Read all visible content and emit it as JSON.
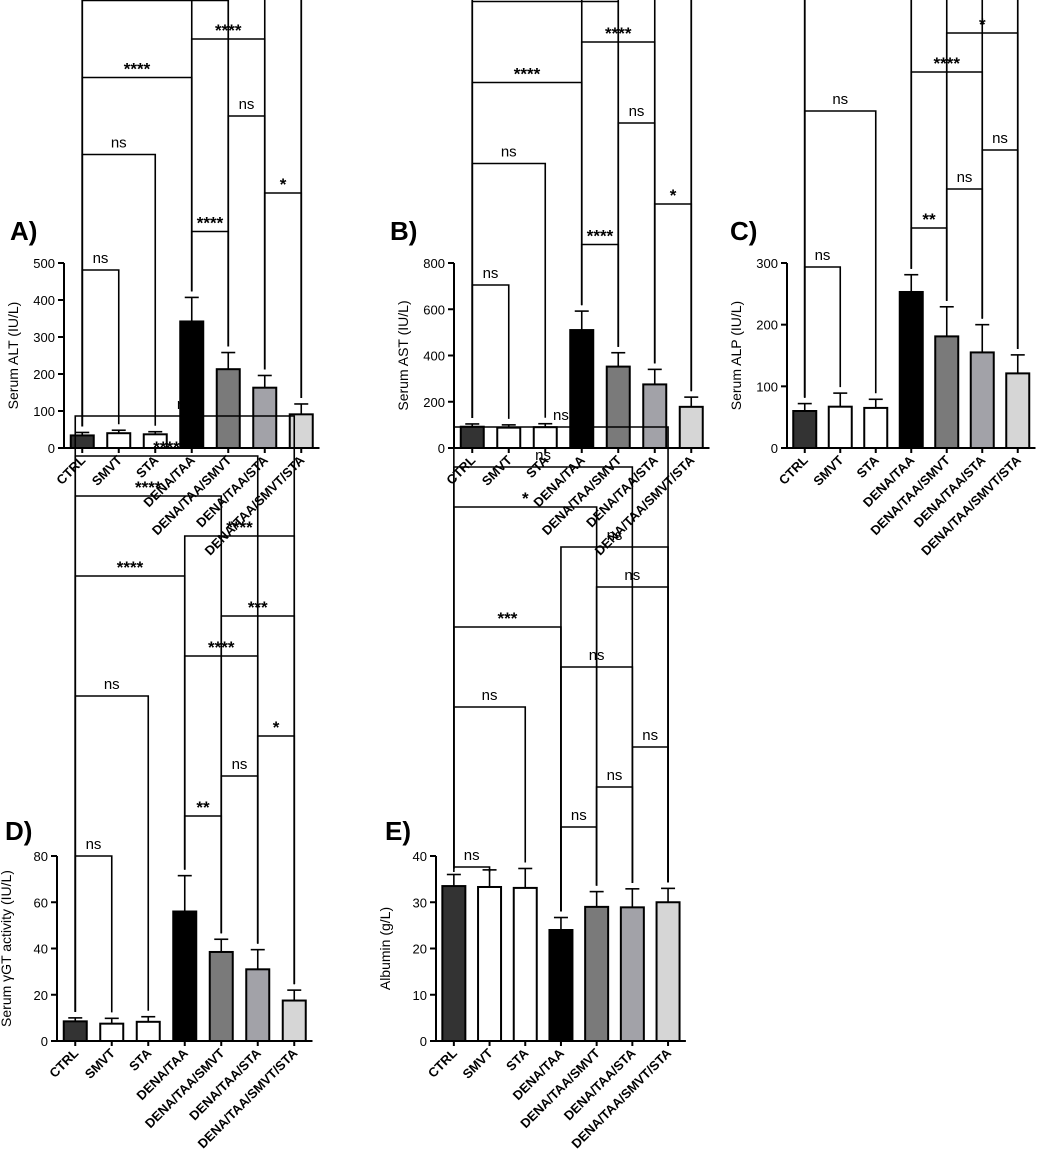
{
  "colors": {
    "CTRL": "#333333",
    "SMVT": "#ffffff",
    "STA": "#ffffff",
    "DENA/TAA": "#000000",
    "DENA/TAA/SMVT": "#7a7a7a",
    "DENA/TAA/STA": "#a2a2a8",
    "DENA/TAA/SMVT/STA": "#d6d6d6"
  },
  "chart_data": [
    {
      "panel": "A)",
      "type": "bar",
      "ylabel": "Serum ALT (IU/L)",
      "ylim": [
        0,
        500
      ],
      "yticks": [
        0,
        100,
        200,
        300,
        400,
        500
      ],
      "categories": [
        "CTRL",
        "SMVT",
        "STA",
        "DENA/TAA",
        "DENA/TAA/SMVT",
        "DENA/TAA/STA",
        "DENA/TAA/SMVT/STA"
      ],
      "values": [
        34,
        40,
        37,
        342,
        213,
        163,
        91
      ],
      "errors": [
        8,
        8,
        7,
        65,
        45,
        33,
        28
      ],
      "comparisons": [
        {
          "a": 0,
          "b": 1,
          "label": "ns"
        },
        {
          "a": 3,
          "b": 4,
          "label": "****"
        },
        {
          "a": 5,
          "b": 6,
          "label": "*"
        },
        {
          "a": 0,
          "b": 2,
          "label": "ns"
        },
        {
          "a": 4,
          "b": 5,
          "label": "ns"
        },
        {
          "a": 0,
          "b": 3,
          "label": "****"
        },
        {
          "a": 3,
          "b": 5,
          "label": "****"
        },
        {
          "a": 0,
          "b": 4,
          "label": "****"
        },
        {
          "a": 4,
          "b": 6,
          "label": "****"
        },
        {
          "a": 3,
          "b": 6,
          "label": "****"
        },
        {
          "a": 0,
          "b": 5,
          "label": "****"
        },
        {
          "a": 0,
          "b": 6,
          "label": "ns"
        }
      ]
    },
    {
      "panel": "B)",
      "type": "bar",
      "ylabel": "Serum AST (IU/L)",
      "ylim": [
        0,
        800
      ],
      "yticks": [
        0,
        200,
        400,
        600,
        800
      ],
      "categories": [
        "CTRL",
        "SMVT",
        "STA",
        "DENA/TAA",
        "DENA/TAA/SMVT",
        "DENA/TAA/STA",
        "DENA/TAA/SMVT/STA"
      ],
      "values": [
        92,
        88,
        90,
        510,
        352,
        275,
        178
      ],
      "errors": [
        12,
        12,
        15,
        82,
        60,
        65,
        42
      ],
      "comparisons": [
        {
          "a": 0,
          "b": 1,
          "label": "ns"
        },
        {
          "a": 3,
          "b": 4,
          "label": "****"
        },
        {
          "a": 5,
          "b": 6,
          "label": "*"
        },
        {
          "a": 0,
          "b": 2,
          "label": "ns"
        },
        {
          "a": 4,
          "b": 5,
          "label": "ns"
        },
        {
          "a": 0,
          "b": 3,
          "label": "****"
        },
        {
          "a": 3,
          "b": 5,
          "label": "****"
        },
        {
          "a": 0,
          "b": 4,
          "label": "****"
        },
        {
          "a": 4,
          "b": 6,
          "label": "****"
        },
        {
          "a": 3,
          "b": 6,
          "label": "****"
        },
        {
          "a": 0,
          "b": 5,
          "label": "****"
        },
        {
          "a": 0,
          "b": 6,
          "label": "ns"
        }
      ]
    },
    {
      "panel": "C)",
      "type": "bar",
      "ylabel": "Serum ALP (IU/L)",
      "ylim": [
        0,
        300
      ],
      "yticks": [
        0,
        100,
        200,
        300
      ],
      "categories": [
        "CTRL",
        "SMVT",
        "STA",
        "DENA/TAA",
        "DENA/TAA/SMVT",
        "DENA/TAA/STA",
        "DENA/TAA/SMVT/STA"
      ],
      "values": [
        60,
        67,
        65,
        253,
        181,
        155,
        121
      ],
      "errors": [
        12,
        22,
        14,
        28,
        48,
        45,
        30
      ],
      "comparisons": [
        {
          "a": 0,
          "b": 1,
          "label": "ns"
        },
        {
          "a": 3,
          "b": 4,
          "label": "**"
        },
        {
          "a": 4,
          "b": 5,
          "label": "ns"
        },
        {
          "a": 5,
          "b": 6,
          "label": "ns"
        },
        {
          "a": 0,
          "b": 2,
          "label": "ns"
        },
        {
          "a": 3,
          "b": 5,
          "label": "****"
        },
        {
          "a": 4,
          "b": 6,
          "label": "*"
        },
        {
          "a": 0,
          "b": 3,
          "label": "****"
        },
        {
          "a": 3,
          "b": 6,
          "label": "****"
        },
        {
          "a": 0,
          "b": 4,
          "label": "****"
        },
        {
          "a": 0,
          "b": 5,
          "label": "***"
        },
        {
          "a": 0,
          "b": 6,
          "label": "*"
        }
      ]
    },
    {
      "panel": "D)",
      "type": "bar",
      "ylabel": "Serum γGT activity (IU/L)",
      "ylim": [
        0,
        80
      ],
      "yticks": [
        0,
        20,
        40,
        60,
        80
      ],
      "categories": [
        "CTRL",
        "SMVT",
        "STA",
        "DENA/TAA",
        "DENA/TAA/SMVT",
        "DENA/TAA/STA",
        "DENA/TAA/SMVT/STA"
      ],
      "values": [
        8.5,
        7.5,
        8.3,
        56,
        38.5,
        31,
        17.5
      ],
      "errors": [
        1.5,
        2.3,
        2.2,
        15.5,
        5.5,
        8.5,
        4.5
      ],
      "comparisons": [
        {
          "a": 0,
          "b": 1,
          "label": "ns"
        },
        {
          "a": 3,
          "b": 4,
          "label": "**"
        },
        {
          "a": 4,
          "b": 5,
          "label": "ns"
        },
        {
          "a": 5,
          "b": 6,
          "label": "*"
        },
        {
          "a": 0,
          "b": 2,
          "label": "ns"
        },
        {
          "a": 3,
          "b": 5,
          "label": "****"
        },
        {
          "a": 4,
          "b": 6,
          "label": "***"
        },
        {
          "a": 0,
          "b": 3,
          "label": "****"
        },
        {
          "a": 3,
          "b": 6,
          "label": "****"
        },
        {
          "a": 0,
          "b": 4,
          "label": "****"
        },
        {
          "a": 0,
          "b": 5,
          "label": "****"
        },
        {
          "a": 0,
          "b": 6,
          "label": "ns"
        }
      ]
    },
    {
      "panel": "E)",
      "type": "bar",
      "ylabel": "Albumin (g/L)",
      "ylim": [
        0,
        40
      ],
      "yticks": [
        0,
        10,
        20,
        30,
        40
      ],
      "categories": [
        "CTRL",
        "SMVT",
        "STA",
        "DENA/TAA",
        "DENA/TAA/SMVT",
        "DENA/TAA/STA",
        "DENA/TAA/SMVT/STA"
      ],
      "values": [
        33.5,
        33.3,
        33.1,
        24,
        29,
        28.9,
        30
      ],
      "errors": [
        2.5,
        3.7,
        4.2,
        2.7,
        3.3,
        4,
        3
      ],
      "comparisons": [
        {
          "a": 0,
          "b": 1,
          "label": "ns"
        },
        {
          "a": 3,
          "b": 4,
          "label": "ns"
        },
        {
          "a": 4,
          "b": 5,
          "label": "ns"
        },
        {
          "a": 5,
          "b": 6,
          "label": "ns"
        },
        {
          "a": 0,
          "b": 2,
          "label": "ns"
        },
        {
          "a": 3,
          "b": 5,
          "label": "ns"
        },
        {
          "a": 0,
          "b": 3,
          "label": "***"
        },
        {
          "a": 4,
          "b": 6,
          "label": "ns"
        },
        {
          "a": 3,
          "b": 6,
          "label": "ns"
        },
        {
          "a": 0,
          "b": 4,
          "label": "*"
        },
        {
          "a": 0,
          "b": 5,
          "label": "ns"
        },
        {
          "a": 0,
          "b": 6,
          "label": "ns"
        }
      ]
    }
  ]
}
